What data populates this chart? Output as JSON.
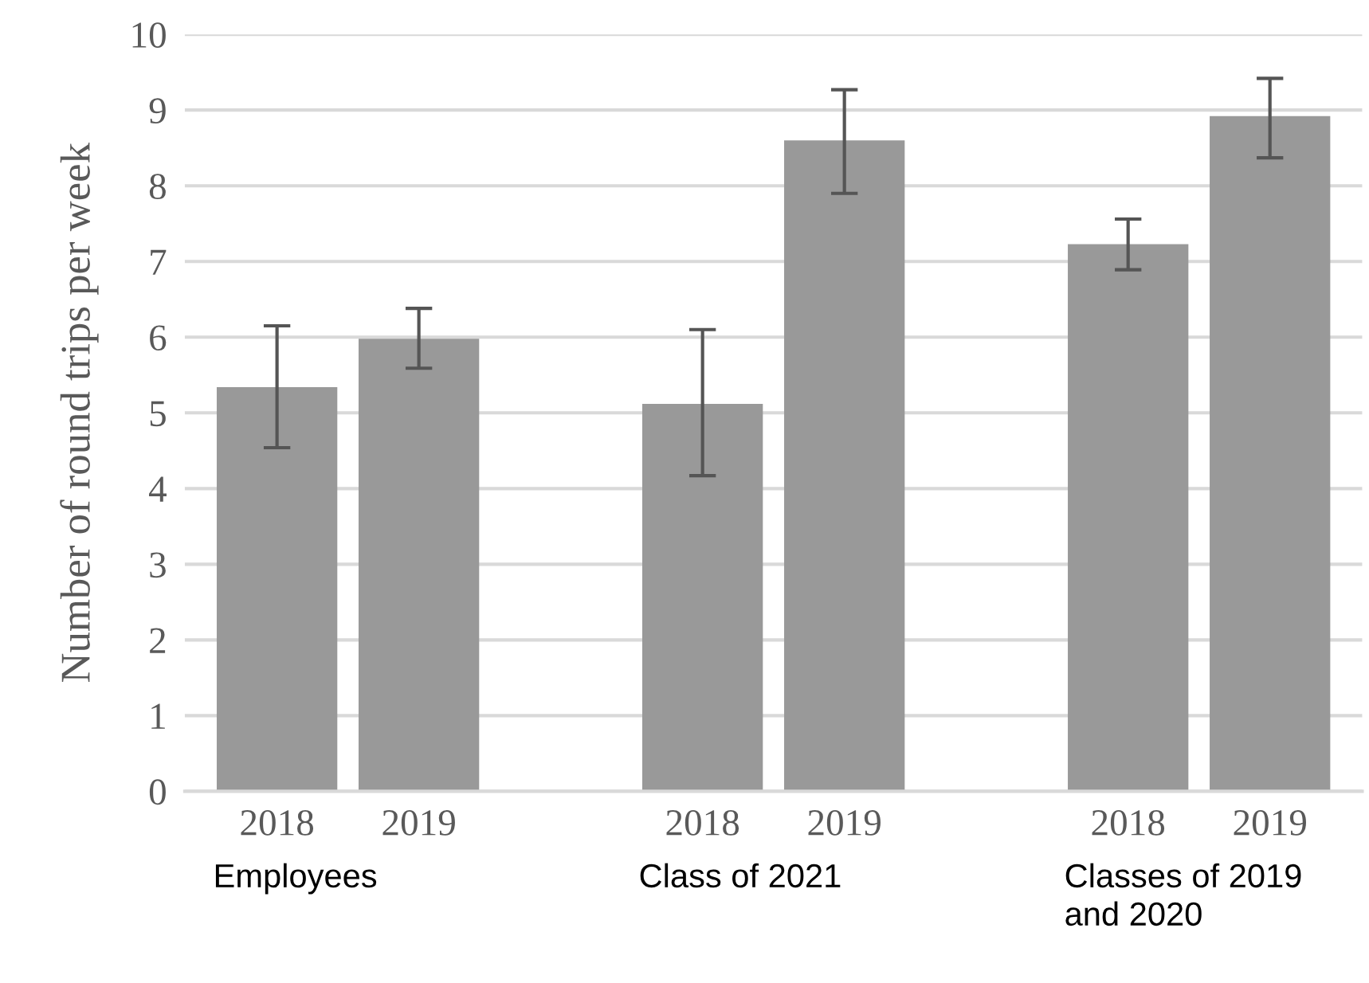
{
  "chart_data": {
    "type": "bar",
    "ylabel": "Number of round trips per week",
    "categories": [
      "2018",
      "2019",
      "2018",
      "2019",
      "2018",
      "2019"
    ],
    "values": [
      5.34,
      5.98,
      5.12,
      8.6,
      7.23,
      8.92
    ],
    "errors": [
      [
        4.54,
        6.15
      ],
      [
        5.59,
        6.38
      ],
      [
        4.17,
        6.1
      ],
      [
        7.9,
        9.27
      ],
      [
        6.89,
        7.56
      ],
      [
        8.37,
        9.42
      ]
    ],
    "color": "#999999",
    "annotations": [
      "Employees",
      "Class of 2021",
      "Classes of 2019\nand 2020"
    ],
    "ylim": [
      0,
      10
    ],
    "yticks": [
      0,
      1,
      2,
      3,
      4,
      5,
      6,
      7,
      8,
      9,
      10
    ],
    "grid": "y"
  }
}
